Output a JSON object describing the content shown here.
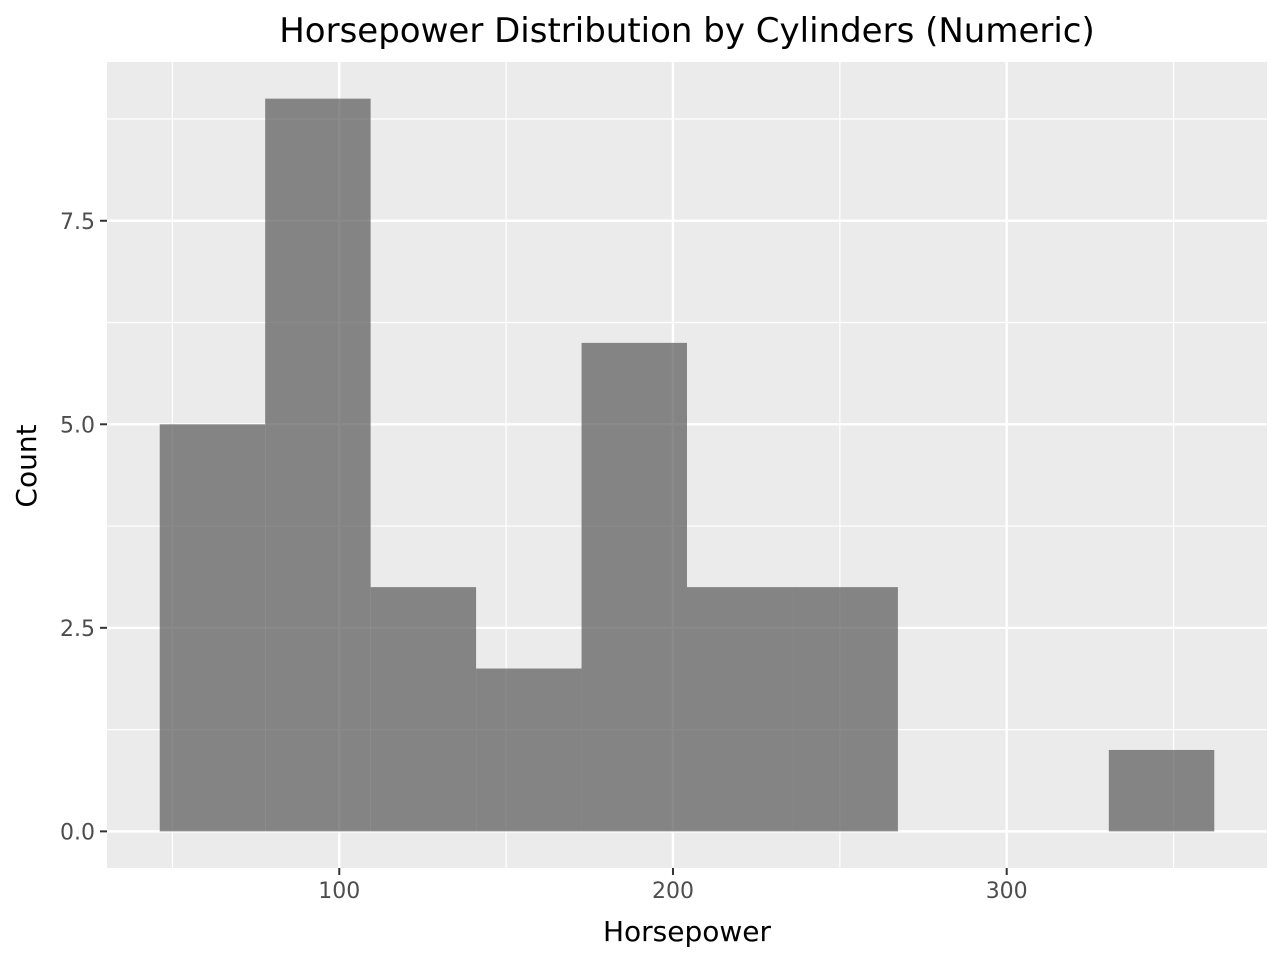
{
  "chart_data": {
    "type": "bar",
    "title": "Horsepower Distribution by Cylinders (Numeric)",
    "xlabel": "Horsepower",
    "ylabel": "Count",
    "bins": [
      {
        "start": 46.2,
        "end": 77.8,
        "count": 5
      },
      {
        "start": 77.8,
        "end": 109.4,
        "count": 9
      },
      {
        "start": 109.4,
        "end": 141.0,
        "count": 3
      },
      {
        "start": 141.0,
        "end": 172.6,
        "count": 2
      },
      {
        "start": 172.6,
        "end": 204.2,
        "count": 6
      },
      {
        "start": 204.2,
        "end": 235.8,
        "count": 3
      },
      {
        "start": 235.8,
        "end": 267.4,
        "count": 3
      },
      {
        "start": 267.4,
        "end": 299.0,
        "count": 0
      },
      {
        "start": 299.0,
        "end": 330.6,
        "count": 0
      },
      {
        "start": 330.6,
        "end": 362.2,
        "count": 1
      }
    ],
    "xlim": [
      30.4,
      378.0
    ],
    "ylim": [
      -0.45,
      9.45
    ],
    "x_ticks": [
      100,
      200,
      300
    ],
    "x_tick_labels": [
      "100",
      "200",
      "300"
    ],
    "x_minor_ticks": [
      50,
      150,
      250,
      350
    ],
    "y_ticks": [
      0,
      2.5,
      5,
      7.5
    ],
    "y_tick_labels": [
      "0.0",
      "2.5",
      "5.0",
      "7.5"
    ],
    "y_minor_ticks": [
      1.25,
      3.75,
      6.25,
      8.75
    ],
    "grid": true,
    "colors": {
      "panel_background": "#ebebeb",
      "grid": "#ffffff",
      "bar_fill": "#595959",
      "bar_opacity": 0.7,
      "tick_mark": "#333333"
    }
  }
}
